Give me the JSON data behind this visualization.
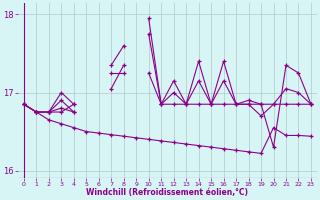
{
  "x": [
    0,
    1,
    2,
    3,
    4,
    5,
    6,
    7,
    8,
    9,
    10,
    11,
    12,
    13,
    14,
    15,
    16,
    17,
    18,
    19,
    20,
    21,
    22,
    23
  ],
  "line_spike": [
    16.85,
    16.75,
    16.75,
    16.75,
    16.85,
    null,
    null,
    17.35,
    17.6,
    null,
    17.95,
    16.85,
    17.15,
    16.85,
    17.4,
    16.85,
    17.4,
    16.85,
    16.85,
    16.85,
    16.3,
    17.35,
    17.25,
    16.85
  ],
  "line_mid": [
    16.85,
    16.75,
    16.75,
    17.0,
    16.85,
    null,
    null,
    17.05,
    17.35,
    null,
    17.75,
    16.85,
    17.0,
    16.85,
    17.15,
    16.85,
    17.15,
    16.85,
    16.85,
    16.7,
    16.85,
    17.05,
    17.0,
    16.85
  ],
  "line_flat": [
    16.85,
    16.75,
    16.75,
    16.8,
    16.75,
    null,
    null,
    17.25,
    17.25,
    null,
    17.25,
    16.85,
    16.85,
    16.85,
    16.85,
    16.85,
    16.85,
    16.85,
    16.9,
    16.85,
    16.85,
    16.85,
    16.85,
    16.85
  ],
  "line_bump": [
    null,
    null,
    16.75,
    16.9,
    16.75,
    null,
    null,
    null,
    null,
    null,
    null,
    null,
    null,
    null,
    null,
    null,
    null,
    null,
    null,
    null,
    null,
    null,
    null,
    null
  ],
  "line_down": [
    16.85,
    16.75,
    16.65,
    16.6,
    16.55,
    16.5,
    16.48,
    16.46,
    16.44,
    16.42,
    16.4,
    16.38,
    16.36,
    16.34,
    16.32,
    16.3,
    16.28,
    16.26,
    16.24,
    16.22,
    16.55,
    16.45,
    16.45,
    16.44
  ],
  "color": "#8b008b",
  "bg_color": "#d8f5f5",
  "xlabel": "Windchill (Refroidissement éolien,°C)",
  "ylim": [
    15.9,
    18.15
  ],
  "xlim": [
    -0.5,
    23.5
  ],
  "yticks": [
    16,
    17,
    18
  ],
  "xticks": [
    0,
    1,
    2,
    3,
    4,
    5,
    6,
    7,
    8,
    9,
    10,
    11,
    12,
    13,
    14,
    15,
    16,
    17,
    18,
    19,
    20,
    21,
    22,
    23
  ],
  "grid_color": "#b0c8c8",
  "tick_color": "#8b008b",
  "label_color": "#8b008b"
}
